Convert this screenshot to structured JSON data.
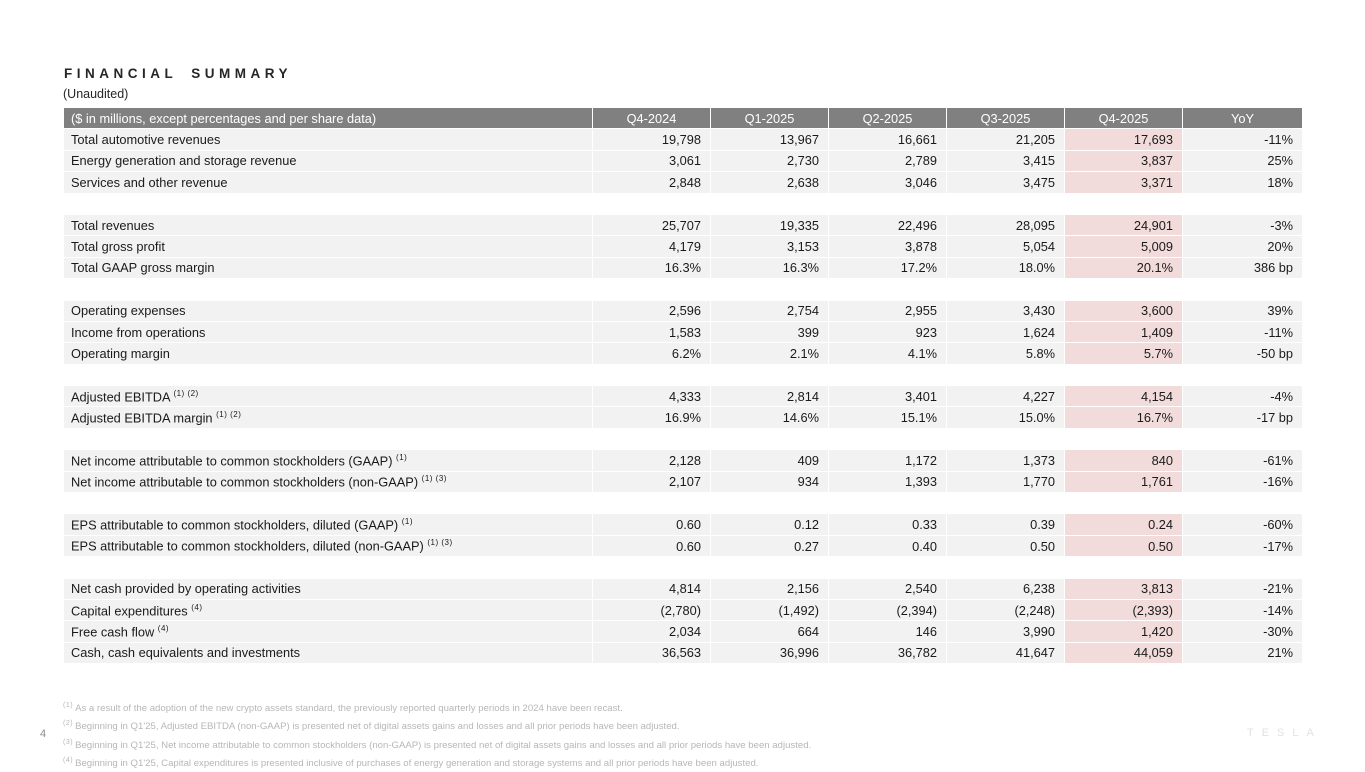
{
  "slide": {
    "title": "FINANCIAL SUMMARY",
    "subtitle": "(Unaudited)",
    "page_number": "4",
    "brand_wordmark": "TESLA"
  },
  "colors": {
    "header_bg": "#808080",
    "header_text": "#ffffff",
    "row_bg": "#f2f2f2",
    "highlight_bg": "#f2dcdb",
    "footnote_text": "#b7b7b7"
  },
  "table": {
    "columns": [
      "($ in millions, except percentages and per share data)",
      "Q4-2024",
      "Q1-2025",
      "Q2-2025",
      "Q3-2025",
      "Q4-2025",
      "YoY"
    ],
    "highlight_column": "Q4-2025",
    "sections": [
      {
        "rows": [
          {
            "label": "Total automotive revenues",
            "sup": "",
            "values": [
              "19,798",
              "13,967",
              "16,661",
              "21,205",
              "17,693",
              "-11%"
            ]
          },
          {
            "label": "Energy generation and storage revenue",
            "sup": "",
            "values": [
              "3,061",
              "2,730",
              "2,789",
              "3,415",
              "3,837",
              "25%"
            ]
          },
          {
            "label": "Services and other revenue",
            "sup": "",
            "values": [
              "2,848",
              "2,638",
              "3,046",
              "3,475",
              "3,371",
              "18%"
            ]
          }
        ]
      },
      {
        "rows": [
          {
            "label": "Total revenues",
            "sup": "",
            "values": [
              "25,707",
              "19,335",
              "22,496",
              "28,095",
              "24,901",
              "-3%"
            ]
          },
          {
            "label": "Total gross profit",
            "sup": "",
            "values": [
              "4,179",
              "3,153",
              "3,878",
              "5,054",
              "5,009",
              "20%"
            ]
          },
          {
            "label": "Total GAAP gross margin",
            "sup": "",
            "values": [
              "16.3%",
              "16.3%",
              "17.2%",
              "18.0%",
              "20.1%",
              "386 bp"
            ]
          }
        ]
      },
      {
        "rows": [
          {
            "label": "Operating expenses",
            "sup": "",
            "values": [
              "2,596",
              "2,754",
              "2,955",
              "3,430",
              "3,600",
              "39%"
            ]
          },
          {
            "label": "Income from operations",
            "sup": "",
            "values": [
              "1,583",
              "399",
              "923",
              "1,624",
              "1,409",
              "-11%"
            ]
          },
          {
            "label": "Operating margin",
            "sup": "",
            "values": [
              "6.2%",
              "2.1%",
              "4.1%",
              "5.8%",
              "5.7%",
              "-50 bp"
            ]
          }
        ]
      },
      {
        "rows": [
          {
            "label": "Adjusted EBITDA",
            "sup": "(1) (2)",
            "values": [
              "4,333",
              "2,814",
              "3,401",
              "4,227",
              "4,154",
              "-4%"
            ]
          },
          {
            "label": "Adjusted EBITDA margin",
            "sup": "(1) (2)",
            "values": [
              "16.9%",
              "14.6%",
              "15.1%",
              "15.0%",
              "16.7%",
              "-17 bp"
            ]
          }
        ]
      },
      {
        "rows": [
          {
            "label": "Net income attributable to common stockholders (GAAP)",
            "sup": "(1)",
            "values": [
              "2,128",
              "409",
              "1,172",
              "1,373",
              "840",
              "-61%"
            ]
          },
          {
            "label": "Net income attributable to common stockholders (non-GAAP)",
            "sup": "(1) (3)",
            "values": [
              "2,107",
              "934",
              "1,393",
              "1,770",
              "1,761",
              "-16%"
            ]
          }
        ]
      },
      {
        "rows": [
          {
            "label": "EPS attributable to common stockholders, diluted (GAAP)",
            "sup": "(1)",
            "values": [
              "0.60",
              "0.12",
              "0.33",
              "0.39",
              "0.24",
              "-60%"
            ]
          },
          {
            "label": "EPS attributable to common stockholders, diluted (non-GAAP)",
            "sup": "(1) (3)",
            "values": [
              "0.60",
              "0.27",
              "0.40",
              "0.50",
              "0.50",
              "-17%"
            ]
          }
        ]
      },
      {
        "rows": [
          {
            "label": "Net cash provided by operating activities",
            "sup": "",
            "values": [
              "4,814",
              "2,156",
              "2,540",
              "6,238",
              "3,813",
              "-21%"
            ]
          },
          {
            "label": "Capital expenditures",
            "sup": "(4)",
            "values": [
              "(2,780)",
              "(1,492)",
              "(2,394)",
              "(2,248)",
              "(2,393)",
              "-14%"
            ]
          },
          {
            "label": "Free cash flow",
            "sup": "(4)",
            "values": [
              "2,034",
              "664",
              "146",
              "3,990",
              "1,420",
              "-30%"
            ]
          },
          {
            "label": "Cash, cash equivalents and investments",
            "sup": "",
            "values": [
              "36,563",
              "36,996",
              "36,782",
              "41,647",
              "44,059",
              "21%"
            ]
          }
        ]
      }
    ]
  },
  "footnotes": [
    {
      "sup": "(1)",
      "text": "As a result of the adoption of the new crypto assets standard, the previously reported quarterly periods in 2024 have been recast."
    },
    {
      "sup": "(2)",
      "text": "Beginning in Q1'25, Adjusted EBITDA (non-GAAP) is presented net of digital assets gains and losses and all prior periods have been adjusted."
    },
    {
      "sup": "(3)",
      "text": "Beginning in Q1'25, Net income attributable to common stockholders (non-GAAP) is presented net of digital assets gains and losses and all prior periods have been adjusted."
    },
    {
      "sup": "(4)",
      "text": "Beginning in Q1'25, Capital expenditures is presented inclusive of purchases of energy generation and storage systems and all prior periods have been adjusted."
    }
  ]
}
